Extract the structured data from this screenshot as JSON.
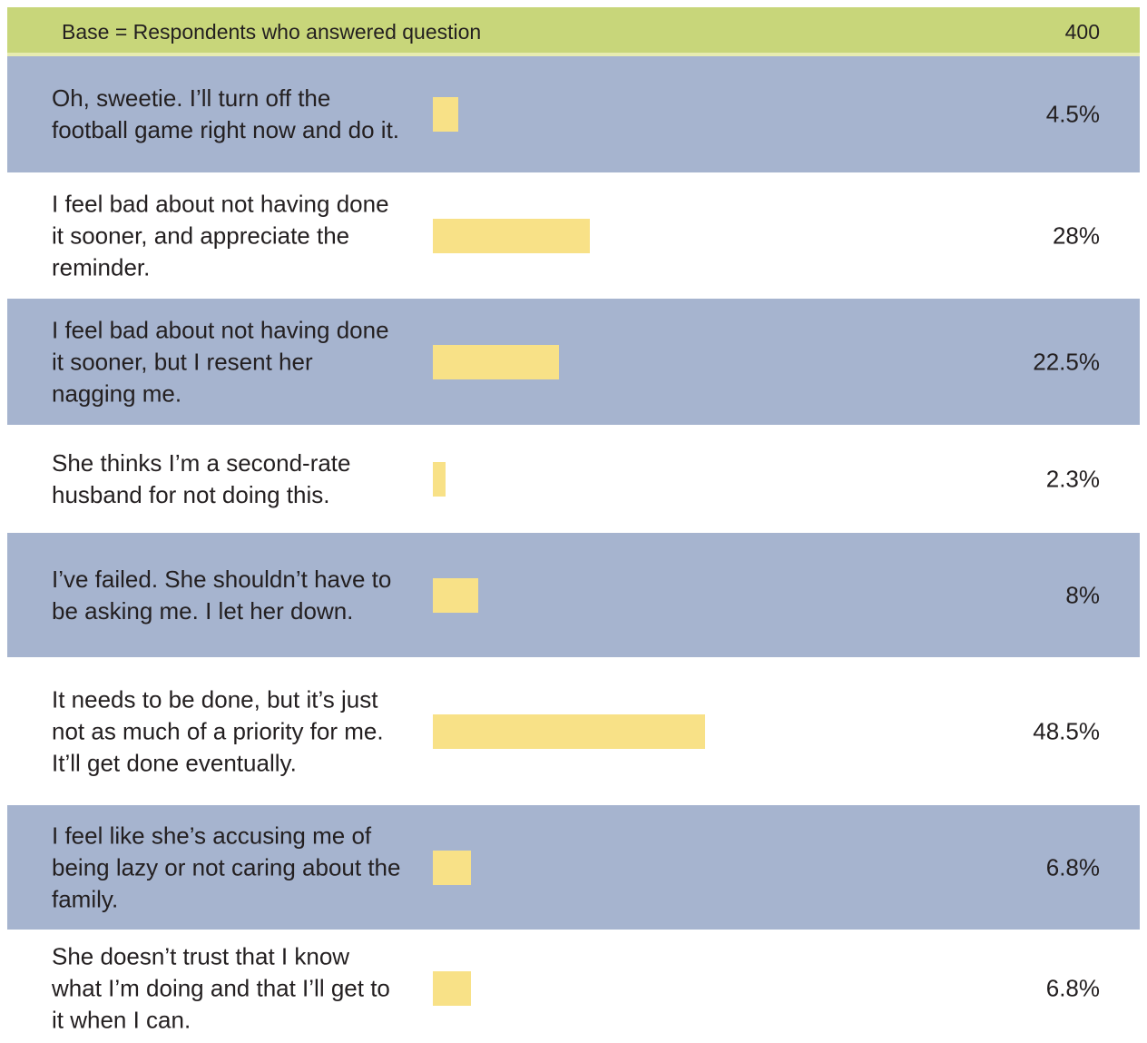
{
  "chart_data": {
    "type": "bar",
    "base_label": "Base = Respondents who answered question",
    "base_value": 400,
    "categories": [
      "Oh, sweetie. I’ll turn off the football game right now and do it.",
      "I feel bad about not having done it sooner, and appreciate the reminder.",
      "I feel bad about not having done it sooner, but I resent her nagging me.",
      "She thinks I’m a second-rate husband for not doing this.",
      "I’ve failed. She shouldn’t have to be asking me. I let her down.",
      "It needs to be done, but it’s just not as much of a priority for me. It’ll get done eventually.",
      "I feel like she’s accusing me of being lazy or not caring about the family.",
      "She doesn’t trust that I know what I’m doing and that I’ll get to it when I can."
    ],
    "values": [
      4.5,
      28,
      22.5,
      2.3,
      8,
      48.5,
      6.8,
      6.8
    ],
    "value_labels": [
      "4.5%",
      "28%",
      "22.5%",
      "2.3%",
      "8%",
      "48.5%",
      "6.8%",
      "6.8%"
    ],
    "color": "#f8e187"
  }
}
